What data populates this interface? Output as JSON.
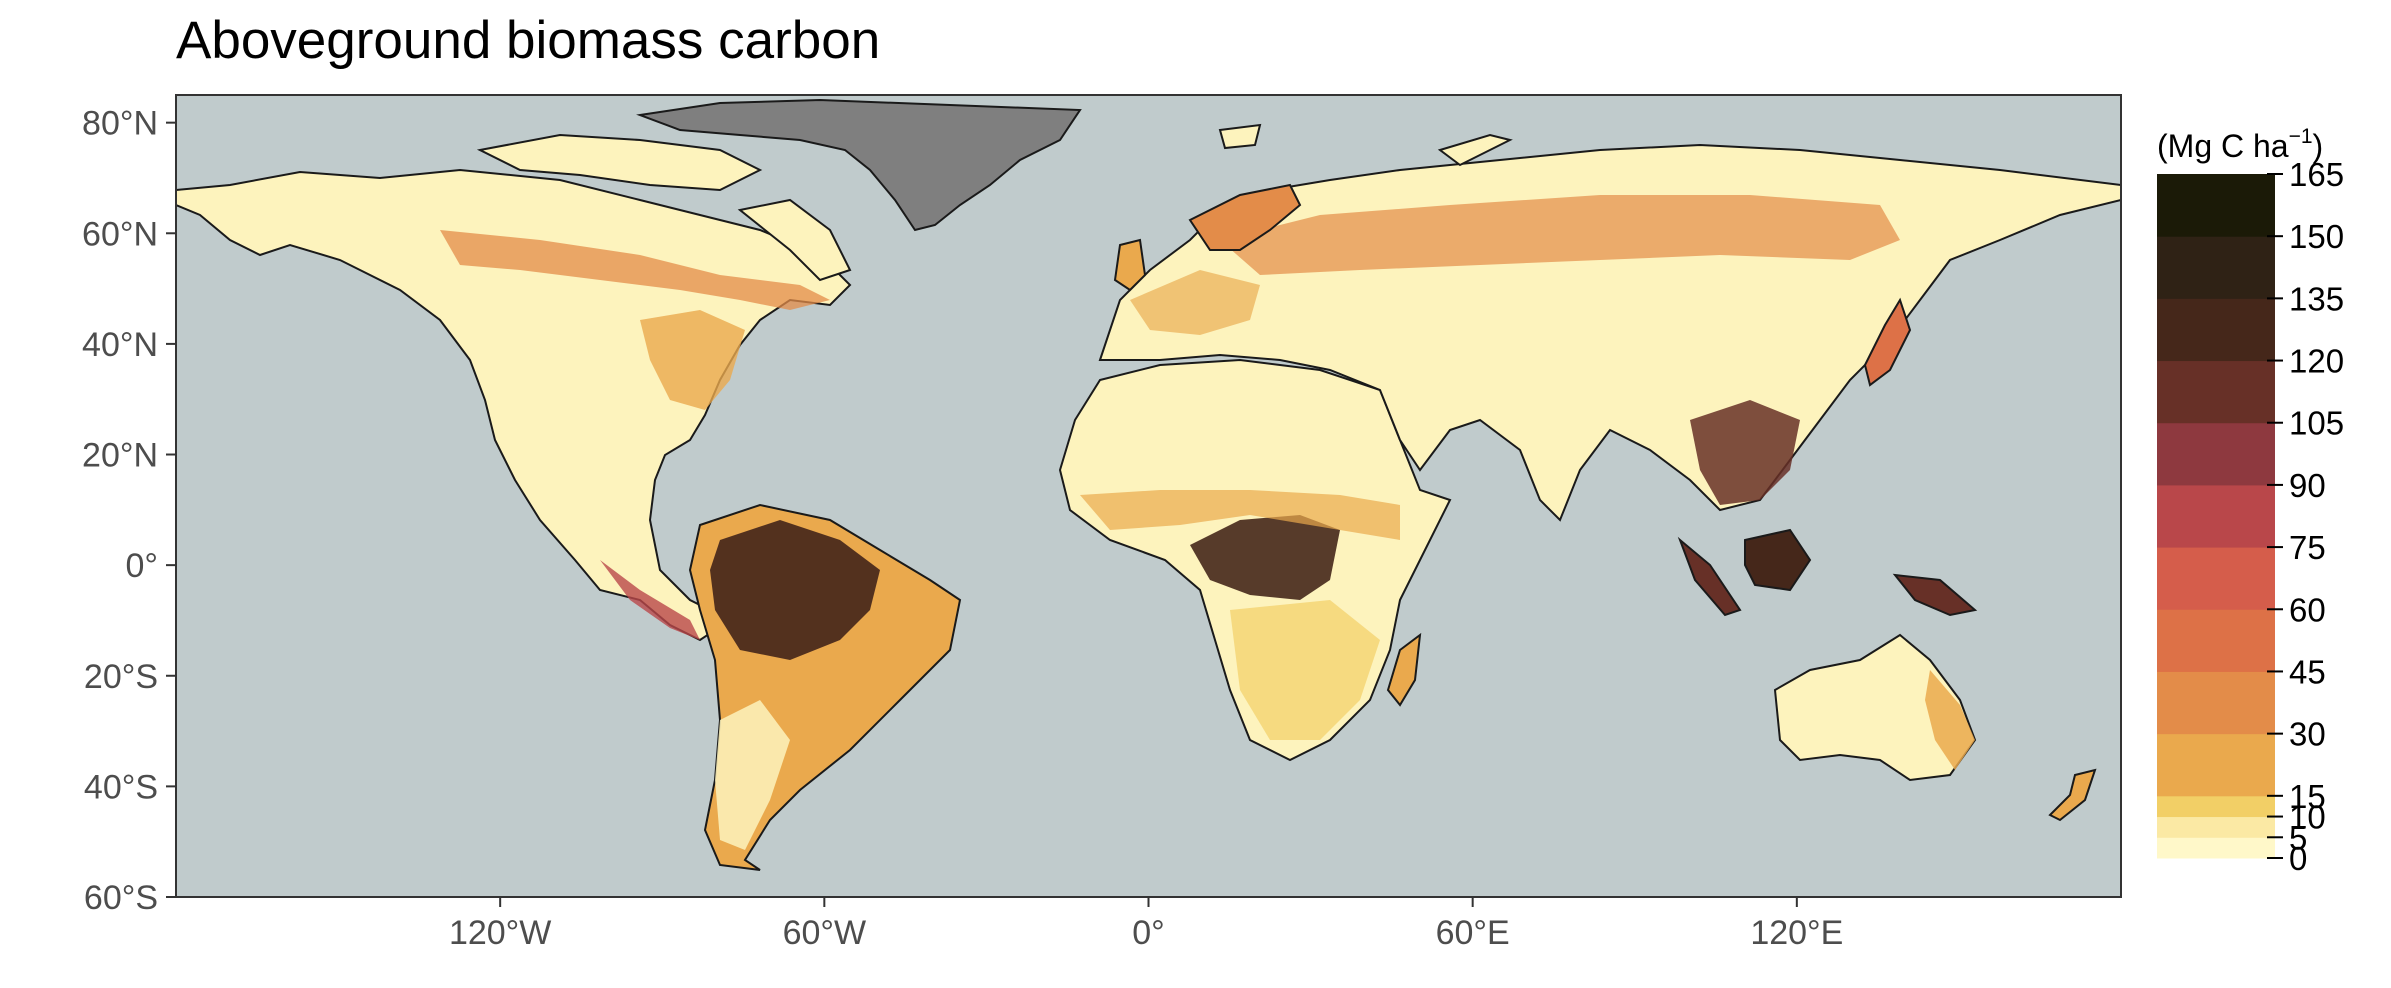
{
  "title": "Aboveground biomass carbon",
  "colors": {
    "ocean": "#c0cbcc",
    "greenland": "#7f7f7f",
    "coast": "#1a1a1a",
    "frame": "#333333"
  },
  "axes": {
    "lon_range": [
      -180,
      180
    ],
    "lat_range": [
      -60,
      85
    ],
    "lat_ticks": [
      {
        "value": 80,
        "label": "80°N"
      },
      {
        "value": 60,
        "label": "60°N"
      },
      {
        "value": 40,
        "label": "40°N"
      },
      {
        "value": 20,
        "label": "20°N"
      },
      {
        "value": 0,
        "label": "0°"
      },
      {
        "value": -20,
        "label": "20°S"
      },
      {
        "value": -40,
        "label": "40°S"
      },
      {
        "value": -60,
        "label": "60°S"
      }
    ],
    "lon_ticks": [
      {
        "value": -120,
        "label": "120°W"
      },
      {
        "value": -60,
        "label": "60°W"
      },
      {
        "value": 0,
        "label": "0°"
      },
      {
        "value": 60,
        "label": "60°E"
      },
      {
        "value": 120,
        "label": "120°E"
      }
    ]
  },
  "legend": {
    "unit": "(Mg C ha",
    "unit_sup": "−1",
    "unit_close": ")",
    "breaks": [
      0,
      5,
      10,
      15,
      30,
      45,
      60,
      75,
      90,
      105,
      120,
      135,
      150,
      165
    ],
    "labels": [
      "0",
      "5",
      "10",
      "15",
      "30",
      "45",
      "60",
      "75",
      "90",
      "105",
      "120",
      "135",
      "150",
      "165"
    ],
    "colors": [
      "#fff8c9",
      "#fbe9a4",
      "#f2cf66",
      "#eaa94d",
      "#e38c49",
      "#dd7147",
      "#d55d4b",
      "#b9474a",
      "#8e393f",
      "#673027",
      "#45271a",
      "#2f2215",
      "#1b1a07"
    ]
  }
}
